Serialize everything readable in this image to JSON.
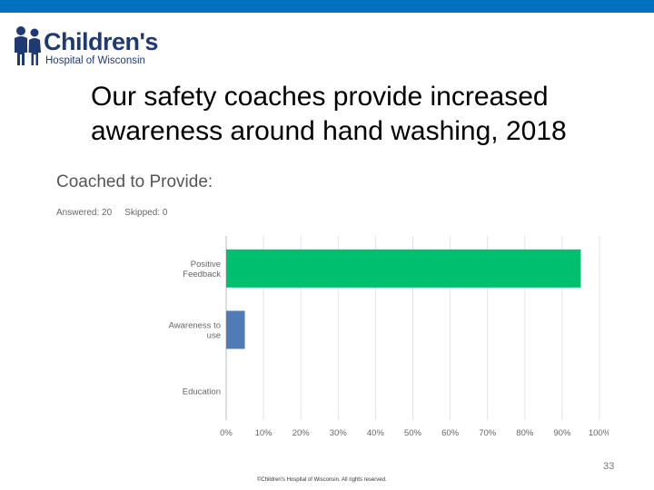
{
  "logo": {
    "name": "Children's",
    "subtitle": "Hospital of Wisconsin"
  },
  "slide_title": "Our safety coaches provide increased awareness around hand washing, 2018",
  "survey": {
    "question": "Coached to Provide:",
    "answered": "Answered: 20",
    "skipped": "Skipped: 0"
  },
  "chart_data": {
    "type": "bar",
    "orientation": "horizontal",
    "categories": [
      [
        "Positive",
        "Feedback"
      ],
      [
        "Awareness to",
        "use"
      ],
      [
        "Education"
      ]
    ],
    "values": [
      95,
      5,
      0
    ],
    "bar_colors": [
      "#00bf6f",
      "#507cb6",
      "#507cb6"
    ],
    "xlim": [
      0,
      100
    ],
    "xticks": [
      "0%",
      "10%",
      "20%",
      "30%",
      "40%",
      "50%",
      "60%",
      "70%",
      "80%",
      "90%",
      "100%"
    ],
    "grid": true
  },
  "footer": {
    "page_number": "33",
    "copyright": "©Children's Hospital of Wisconsin. All rights reserved."
  },
  "colors": {
    "top_bar": "#0070c0",
    "brand": "#1f3a73"
  }
}
